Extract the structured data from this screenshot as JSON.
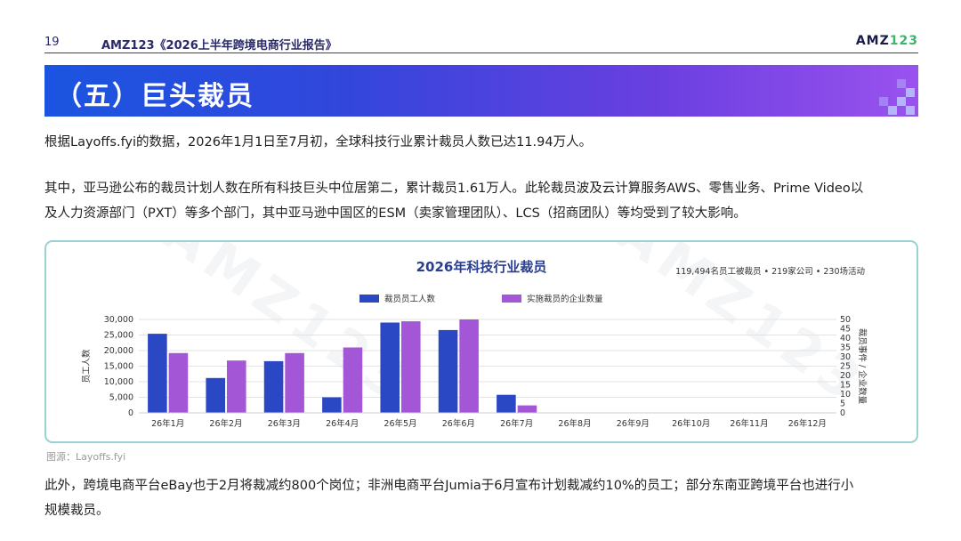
{
  "header": {
    "page_number": "19",
    "report_title": "AMZ123《2026上半年跨境电商行业报告》",
    "logo_main": "AMZ",
    "logo_accent": "123"
  },
  "section": {
    "title": "（五）巨头裁员"
  },
  "paragraphs": {
    "p1": "根据Layoffs.fyi的数据，2026年1月1日至7月初，全球科技行业累计裁员人数已达11.94万人。",
    "p2_line1": "其中，亚马逊公布的裁员计划人数在所有科技巨头中位居第二，累计裁员1.61万人。此轮裁员波及云计算服务AWS、零售业务、Prime Video以",
    "p2_line2": "及人力资源部门（PXT）等多个部门，其中亚马逊中国区的ESM（卖家管理团队）、LCS（招商团队）等均受到了较大影响。",
    "p3_line1": "此外，跨境电商平台eBay也于2月将裁减约800个岗位；非洲电商平台Jumia于6月宣布计划裁减约10%的员工；部分东南亚跨境平台也进行小",
    "p3_line2": "规模裁员。"
  },
  "watermark": "AMZ123",
  "source_note": "图源：Layoffs.fyi",
  "colors": {
    "series1": "#2a47c4",
    "series2": "#a356d6",
    "accent": "#2a3e8f"
  },
  "chart_data": {
    "type": "bar",
    "title": "2026年科技行业裁员",
    "subtitle": "119,494名员工被裁员 • 219家公司 • 230场活动",
    "categories": [
      "26年1月",
      "26年2月",
      "26年3月",
      "26年4月",
      "26年5月",
      "26年6月",
      "26年7月",
      "26年8月",
      "26年9月",
      "26年10月",
      "26年11月",
      "26年12月"
    ],
    "series": [
      {
        "name": "裁员员工人数",
        "axis": "left",
        "values": [
          25400,
          11200,
          16600,
          5000,
          29000,
          26600,
          5800,
          0,
          0,
          0,
          0,
          0
        ]
      },
      {
        "name": "实施裁员的企业数量",
        "axis": "right",
        "values": [
          32,
          28,
          32,
          35,
          49,
          50,
          4,
          0,
          0,
          0,
          0,
          0
        ]
      }
    ],
    "ylabel": "员工人数",
    "y2label": "裁员事件 / 企业数量",
    "ylim": [
      0,
      30000
    ],
    "y2lim": [
      0,
      50
    ],
    "yticks": [
      "0",
      "5,000",
      "10,000",
      "15,000",
      "20,000",
      "25,000",
      "30,000"
    ],
    "y2ticks": [
      "0",
      "5",
      "10",
      "15",
      "20",
      "25",
      "30",
      "35",
      "40",
      "45",
      "50"
    ],
    "grid": true,
    "legend_position": "top-center"
  }
}
